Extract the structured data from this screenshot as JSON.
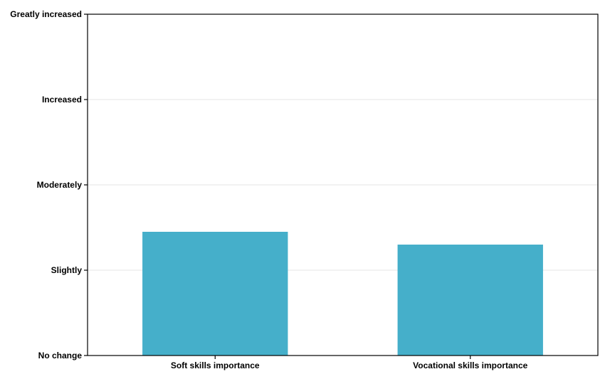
{
  "chart_data": {
    "type": "bar",
    "title": "",
    "xlabel": "",
    "ylabel": "",
    "categories": [
      "Soft skills importance",
      "Vocational skills importance"
    ],
    "values": [
      1.45,
      1.3
    ],
    "ylim": [
      0,
      4
    ],
    "yticks": [
      {
        "value": 0,
        "label": "No change"
      },
      {
        "value": 1,
        "label": "Slightly"
      },
      {
        "value": 2,
        "label": "Moderately"
      },
      {
        "value": 3,
        "label": "Increased"
      },
      {
        "value": 4,
        "label": "Greatly increased"
      }
    ],
    "grid": true,
    "legend": "none",
    "bar_color": "#45afca",
    "grid_color": "#e6e6e6"
  }
}
